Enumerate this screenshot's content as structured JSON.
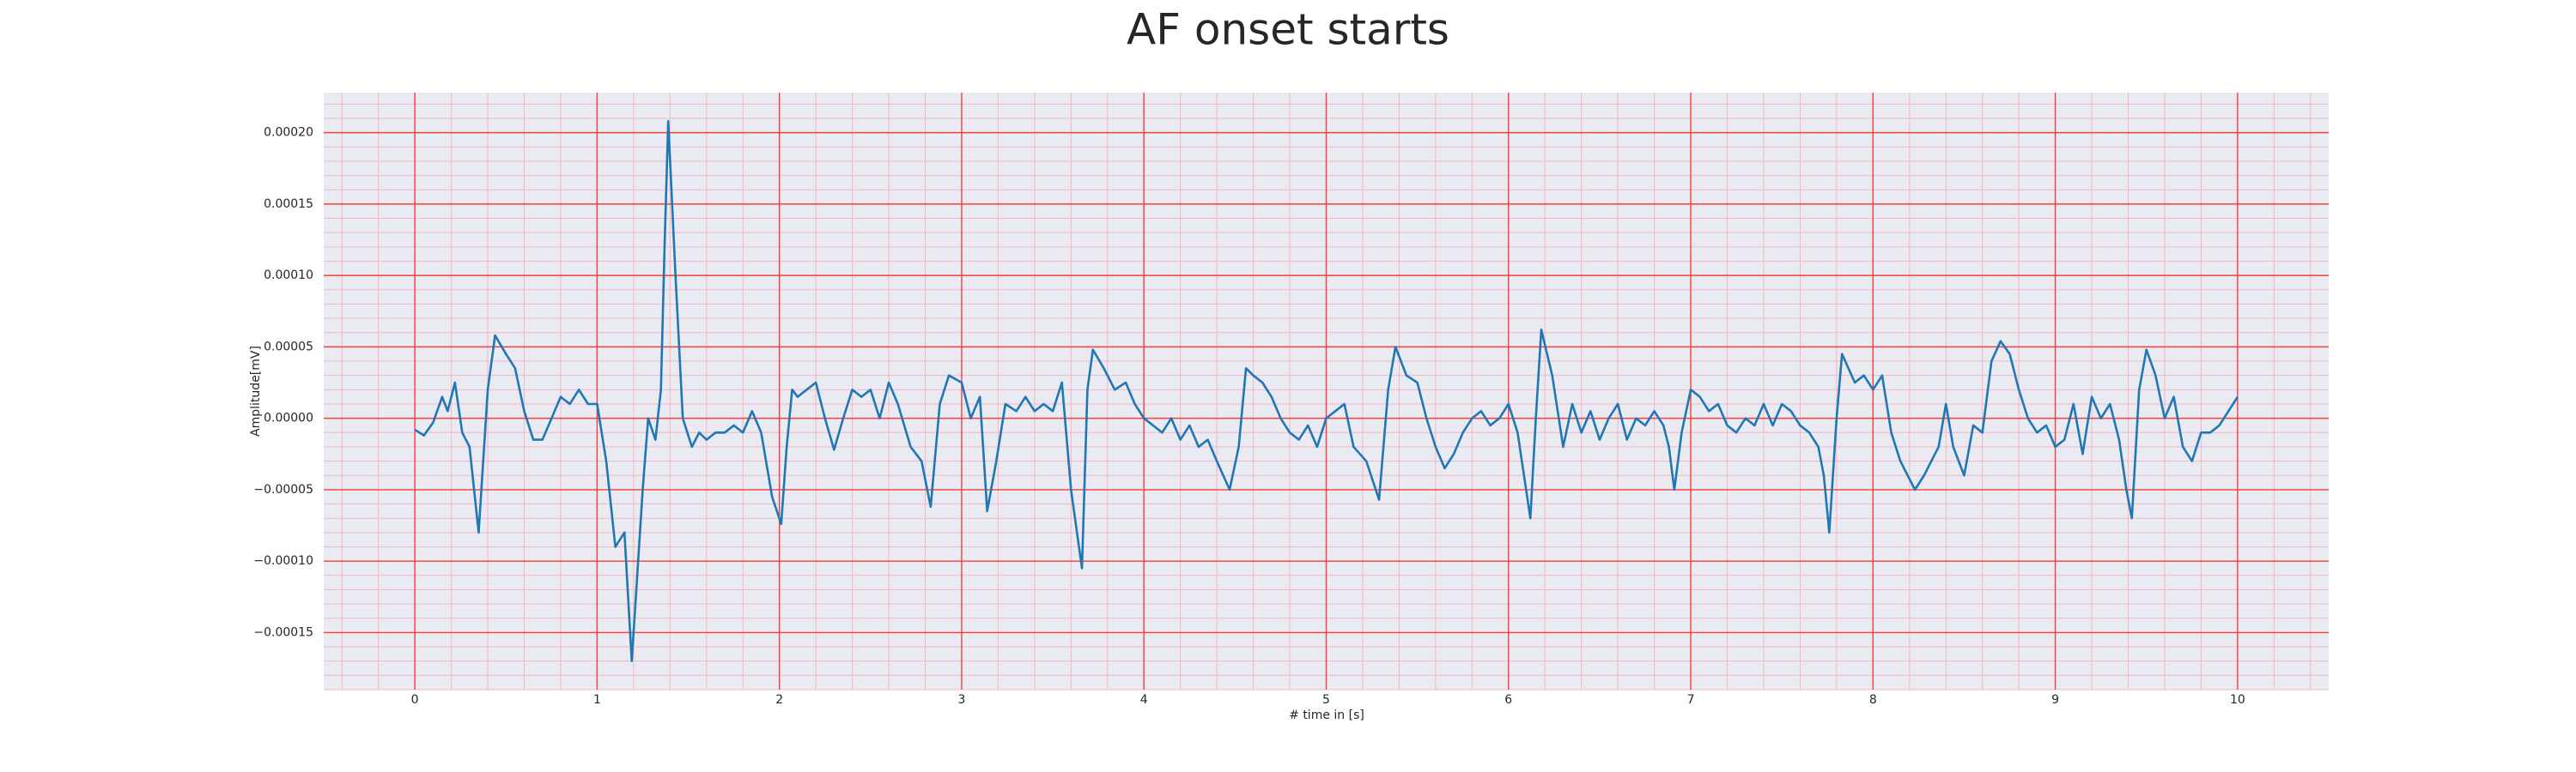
{
  "chart_data": {
    "type": "line",
    "title": "AF onset starts",
    "xlabel": "# time in [s]",
    "ylabel": "Amplitude[mV]",
    "xlim": [
      -0.5,
      10.5
    ],
    "xticks": [
      0,
      1,
      2,
      3,
      4,
      5,
      6,
      7,
      8,
      9,
      10
    ],
    "ylim": [
      -0.00019,
      0.000228
    ],
    "yticks": [
      {
        "value": -0.00015,
        "label": "−0.00015"
      },
      {
        "value": -0.0001,
        "label": "−0.00010"
      },
      {
        "value": -5e-05,
        "label": "−0.00005"
      },
      {
        "value": 0,
        "label": "0.00000"
      },
      {
        "value": 5e-05,
        "label": "0.00005"
      },
      {
        "value": 0.0001,
        "label": "0.00010"
      },
      {
        "value": 0.00015,
        "label": "0.00015"
      },
      {
        "value": 0.0002,
        "label": "0.00020"
      }
    ],
    "grid": true,
    "minor_grid": true,
    "background": "#eaeaf2",
    "grid_color": "#f04040",
    "minor_grid_color": "#f3b6c4",
    "series": [
      {
        "color": "#1f77b4",
        "x": [
          0,
          0.05,
          0.1,
          0.15,
          0.18,
          0.22,
          0.26,
          0.3,
          0.35,
          0.4,
          0.44,
          0.5,
          0.55,
          0.6,
          0.65,
          0.7,
          0.75,
          0.8,
          0.85,
          0.9,
          0.95,
          1.0,
          1.05,
          1.1,
          1.15,
          1.19,
          1.25,
          1.28,
          1.32,
          1.35,
          1.37,
          1.39,
          1.43,
          1.47,
          1.52,
          1.56,
          1.6,
          1.65,
          1.7,
          1.75,
          1.8,
          1.85,
          1.9,
          1.96,
          2.01,
          2.04,
          2.07,
          2.1,
          2.15,
          2.2,
          2.25,
          2.3,
          2.35,
          2.4,
          2.45,
          2.5,
          2.55,
          2.6,
          2.65,
          2.72,
          2.78,
          2.83,
          2.88,
          2.93,
          3.0,
          3.05,
          3.1,
          3.14,
          3.19,
          3.24,
          3.3,
          3.35,
          3.4,
          3.45,
          3.5,
          3.55,
          3.6,
          3.66,
          3.69,
          3.72,
          3.78,
          3.84,
          3.9,
          3.95,
          4.0,
          4.05,
          4.1,
          4.15,
          4.2,
          4.25,
          4.3,
          4.35,
          4.4,
          4.47,
          4.52,
          4.56,
          4.6,
          4.65,
          4.7,
          4.75,
          4.8,
          4.85,
          4.9,
          4.95,
          5.0,
          5.05,
          5.1,
          5.15,
          5.22,
          5.29,
          5.34,
          5.38,
          5.44,
          5.5,
          5.55,
          5.6,
          5.65,
          5.7,
          5.75,
          5.8,
          5.85,
          5.9,
          5.95,
          6.0,
          6.05,
          6.12,
          6.15,
          6.18,
          6.24,
          6.3,
          6.35,
          6.4,
          6.45,
          6.5,
          6.55,
          6.6,
          6.65,
          6.7,
          6.75,
          6.8,
          6.85,
          6.88,
          6.91,
          6.95,
          7.0,
          7.05,
          7.1,
          7.15,
          7.2,
          7.25,
          7.3,
          7.35,
          7.4,
          7.45,
          7.5,
          7.55,
          7.6,
          7.65,
          7.7,
          7.73,
          7.76,
          7.8,
          7.83,
          7.9,
          7.95,
          8.0,
          8.05,
          8.1,
          8.15,
          8.23,
          8.28,
          8.32,
          8.36,
          8.4,
          8.44,
          8.5,
          8.55,
          8.6,
          8.65,
          8.7,
          8.75,
          8.8,
          8.85,
          8.9,
          8.95,
          9.0,
          9.05,
          9.1,
          9.15,
          9.2,
          9.25,
          9.3,
          9.35,
          9.39,
          9.42,
          9.46,
          9.5,
          9.55,
          9.6,
          9.65,
          9.7,
          9.75,
          9.8,
          9.85,
          9.9,
          9.95,
          10.0
        ],
        "values": [
          -8e-06,
          -1.2e-05,
          -3e-06,
          1.5e-05,
          5e-06,
          2.5e-05,
          -1e-05,
          -2e-05,
          -8e-05,
          2e-05,
          5.8e-05,
          4.5e-05,
          3.5e-05,
          5e-06,
          -1.5e-05,
          -1.5e-05,
          0,
          1.5e-05,
          1e-05,
          2e-05,
          1e-05,
          1e-05,
          -3e-05,
          -9e-05,
          -8e-05,
          -0.00017,
          -5e-05,
          0,
          -1.5e-05,
          2e-05,
          0.00012,
          0.000208,
          0.0001,
          0,
          -2e-05,
          -1e-05,
          -1.5e-05,
          -1e-05,
          -1e-05,
          -5e-06,
          -1e-05,
          5e-06,
          -1e-05,
          -5.5e-05,
          -7.4e-05,
          -2e-05,
          2e-05,
          1.5e-05,
          2e-05,
          2.5e-05,
          0,
          -2.2e-05,
          0,
          2e-05,
          1.5e-05,
          2e-05,
          0,
          2.5e-05,
          1e-05,
          -2e-05,
          -3e-05,
          -6.2e-05,
          1e-05,
          3e-05,
          2.5e-05,
          0,
          1.5e-05,
          -6.5e-05,
          -3e-05,
          1e-05,
          5e-06,
          1.5e-05,
          5e-06,
          1e-05,
          5e-06,
          2.5e-05,
          -5e-05,
          -0.000105,
          2e-05,
          4.8e-05,
          3.5e-05,
          2e-05,
          2.5e-05,
          1e-05,
          0,
          -5e-06,
          -1e-05,
          0,
          -1.5e-05,
          -5e-06,
          -2e-05,
          -1.5e-05,
          -3e-05,
          -5e-05,
          -2e-05,
          3.5e-05,
          3e-05,
          2.5e-05,
          1.5e-05,
          0,
          -1e-05,
          -1.5e-05,
          -5e-06,
          -2e-05,
          0,
          5e-06,
          1e-05,
          -2e-05,
          -3e-05,
          -5.7e-05,
          2e-05,
          5e-05,
          3e-05,
          2.5e-05,
          0,
          -2e-05,
          -3.5e-05,
          -2.5e-05,
          -1e-05,
          0,
          5e-06,
          -5e-06,
          0,
          1e-05,
          -1e-05,
          -7e-05,
          0,
          6.2e-05,
          3e-05,
          -2e-05,
          1e-05,
          -1e-05,
          5e-06,
          -1.5e-05,
          0,
          1e-05,
          -1.5e-05,
          0,
          -5e-06,
          5e-06,
          -5e-06,
          -2e-05,
          -5e-05,
          -1e-05,
          2e-05,
          1.5e-05,
          5e-06,
          1e-05,
          -5e-06,
          -1e-05,
          0,
          -5e-06,
          1e-05,
          -5e-06,
          1e-05,
          5e-06,
          -5e-06,
          -1e-05,
          -2e-05,
          -4e-05,
          -8e-05,
          0,
          4.5e-05,
          2.5e-05,
          3e-05,
          2e-05,
          3e-05,
          -1e-05,
          -3e-05,
          -5e-05,
          -4e-05,
          -3e-05,
          -2e-05,
          1e-05,
          -2e-05,
          -4e-05,
          -5e-06,
          -1e-05,
          4e-05,
          5.4e-05,
          4.5e-05,
          2e-05,
          0,
          -1e-05,
          -5e-06,
          -2e-05,
          -1.5e-05,
          1e-05,
          -2.5e-05,
          1.5e-05,
          0,
          1e-05,
          -1.5e-05,
          -5e-05,
          -7e-05,
          2e-05,
          4.8e-05,
          3e-05,
          0,
          1.5e-05,
          -2e-05,
          -3e-05,
          -1e-05,
          -1e-05,
          -5e-06,
          5e-06,
          1.5e-05
        ]
      }
    ]
  }
}
